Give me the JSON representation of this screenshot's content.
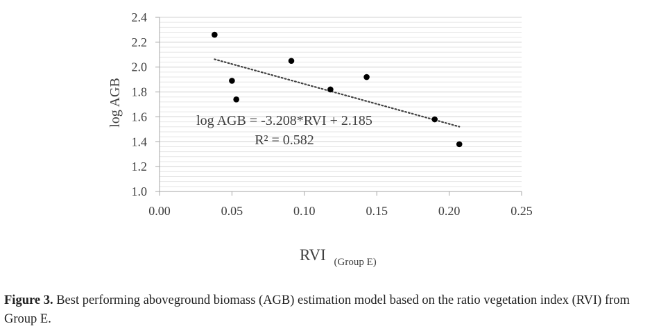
{
  "chart_data": {
    "type": "scatter",
    "xlabel": "RVI",
    "xlabel_sub": "(Group E)",
    "ylabel": "log AGB",
    "xlim": [
      0,
      0.25
    ],
    "ylim": [
      1.0,
      2.4
    ],
    "x_ticks": [
      "0.00",
      "0.05",
      "0.10",
      "0.15",
      "0.20",
      "0.25"
    ],
    "y_ticks": [
      "1.0",
      "1.2",
      "1.4",
      "1.6",
      "1.8",
      "2.0",
      "2.2",
      "2.4"
    ],
    "grid": true,
    "points": [
      {
        "x": 0.038,
        "y": 2.26
      },
      {
        "x": 0.05,
        "y": 1.89
      },
      {
        "x": 0.053,
        "y": 1.74
      },
      {
        "x": 0.091,
        "y": 2.05
      },
      {
        "x": 0.118,
        "y": 1.82
      },
      {
        "x": 0.143,
        "y": 1.92
      },
      {
        "x": 0.19,
        "y": 1.58
      },
      {
        "x": 0.207,
        "y": 1.38
      }
    ],
    "trendline": {
      "type": "linear",
      "slope": -3.208,
      "intercept": 2.185,
      "x_range": [
        0.038,
        0.207
      ],
      "style": "dotted"
    },
    "annotations": {
      "equation": "log AGB = -3.208*RVI + 2.185",
      "r2": "R² = 0.582"
    }
  },
  "caption": {
    "label": "Figure 3.",
    "text": " Best performing aboveground biomass (AGB) estimation model based on the ratio vegetation index (RVI) from Group E."
  }
}
